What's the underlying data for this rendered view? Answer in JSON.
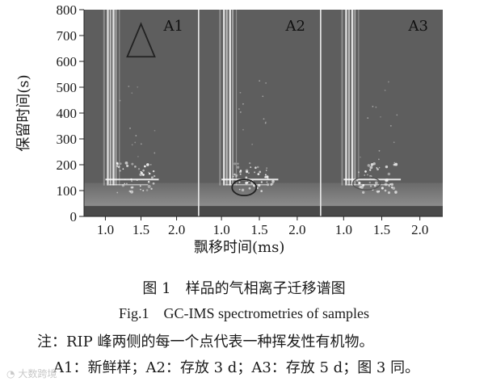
{
  "chart_data": {
    "type": "heatmap",
    "ylabel": "保留时间(s)",
    "xlabel": "飘移时间(ms)",
    "yticks": [
      "0",
      "100",
      "200",
      "300",
      "400",
      "500",
      "600",
      "700",
      "800"
    ],
    "ylim": [
      0,
      800
    ],
    "panels": [
      {
        "name": "A1",
        "xticks": [
          "1.0",
          "1.5",
          "2.0"
        ]
      },
      {
        "name": "A2",
        "xticks": [
          "1.0",
          "1.5",
          "2.0"
        ]
      },
      {
        "name": "A3",
        "xticks": [
          "1.0",
          "1.5",
          "2.0"
        ]
      }
    ]
  },
  "caption": {
    "zh": "图 1　样品的气相离子迁移谱图",
    "en": "Fig.1　GC-IMS spectrometries of samples"
  },
  "notes": {
    "line1": "注：RIP 峰两侧的每一个点代表一种挥发性有机物。",
    "line2": "A1：新鲜样；A2：存放 3 d；A3：存放 5 d；图 3 同。"
  },
  "watermark": "大数跨境",
  "colors": {
    "background": "#5e5e5e",
    "band": "#8a8a8a",
    "peak": "#ffffff",
    "marker": "#222222"
  }
}
